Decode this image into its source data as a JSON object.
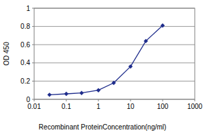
{
  "chart_data": {
    "type": "line",
    "x_label": "Recombinant ProteinConcentration(ng/ml)",
    "y_label": "OD 450",
    "x": [
      0.03,
      0.1,
      0.3,
      1,
      3,
      10,
      30,
      100
    ],
    "values": [
      0.05,
      0.06,
      0.07,
      0.1,
      0.18,
      0.36,
      0.64,
      0.81
    ],
    "color": "#1f2d8c",
    "marker": "diamond",
    "log": "x",
    "grid": true,
    "xlim": [
      0.01,
      1000
    ],
    "xticks": [
      0.01,
      0.1,
      1,
      10,
      100,
      1000
    ],
    "ylim": [
      0,
      1
    ],
    "yticks": [
      0,
      0.2,
      0.4,
      0.6,
      0.8,
      1
    ]
  }
}
